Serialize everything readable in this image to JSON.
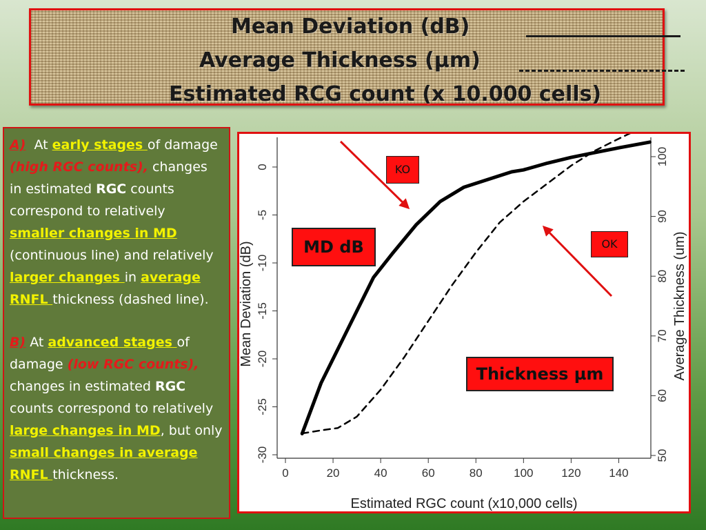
{
  "title": {
    "line1": "Mean Deviation (dB)",
    "line2": "Average Thickness (µm)",
    "line3": "Estimated RCG count (x 10.000 cells)"
  },
  "notes": {
    "a_label": "A)",
    "a_t1": "At ",
    "a_early": "early stages ",
    "a_t2": "of damage ",
    "a_high": "(high RGC counts),",
    "a_t3": " changes in estimated ",
    "a_rgc": "RGC",
    "a_t4": " counts correspond to relatively ",
    "a_smaller": "smaller changes in MD ",
    "a_t5": "(continuous line) and relatively ",
    "a_larger": "larger changes ",
    "a_t6": "in ",
    "a_avg": "average RNFL ",
    "a_t7": "thickness (dashed line).",
    "b_label": "B)",
    "b_t1": " At ",
    "b_adv": "advanced stages ",
    "b_t2": "of damage ",
    "b_low": "(low RGC counts),",
    "b_t3": " changes in estimated ",
    "b_rgc": "RGC",
    "b_t4": " counts correspond to relatively ",
    "b_large": "large changes in MD",
    "b_t5": ", but only ",
    "b_small": "small changes in average RNFL ",
    "b_t6": "thickness."
  },
  "annotations": {
    "ko": "KO",
    "ok": "OK",
    "md_db": "MD dB",
    "thickness": "Thickness µm"
  },
  "colors": {
    "accent_red": "#ff0f0f",
    "highlight_yellow": "#f2f200",
    "panel_green": "#607a3a"
  },
  "chart_data": {
    "type": "line",
    "xlabel": "Estimated RGC count (x10,000 cells)",
    "ylabel": "Mean Deviation (dB)",
    "y2label": "Average Thickness (um)",
    "xlim": [
      0,
      150
    ],
    "ylim": [
      -30,
      0
    ],
    "y2lim": [
      50,
      100
    ],
    "x_ticks": [
      "0",
      "20",
      "40",
      "60",
      "80",
      "100",
      "120",
      "140"
    ],
    "y_ticks": [
      "0",
      "-5",
      "-10",
      "-15",
      "-20",
      "-25",
      "-30"
    ],
    "y2_ticks": [
      "50",
      "60",
      "70",
      "80",
      "90",
      "100"
    ],
    "grid": false,
    "series": [
      {
        "axis": "left",
        "style": "solid",
        "x": [
          7,
          15,
          25,
          30,
          37,
          45,
          55,
          65,
          75,
          85,
          95,
          100,
          110,
          120,
          130,
          140,
          153
        ],
        "y": [
          -27.8,
          -22.5,
          -17.5,
          -15.0,
          -11.5,
          -9.0,
          -6.0,
          -3.6,
          -2.1,
          -1.3,
          -0.5,
          -0.3,
          0.4,
          1.0,
          1.5,
          2.0,
          2.6
        ]
      },
      {
        "axis": "right",
        "style": "dashed",
        "x": [
          7,
          15,
          22,
          30,
          40,
          50,
          60,
          70,
          80,
          90,
          100,
          110,
          120,
          130,
          140,
          153
        ],
        "y": [
          53.7,
          54.2,
          54.6,
          56.5,
          61.0,
          66.5,
          72.5,
          78.5,
          84.0,
          89.0,
          92.5,
          95.5,
          98.5,
          101.0,
          103.0,
          105.5
        ]
      }
    ]
  }
}
